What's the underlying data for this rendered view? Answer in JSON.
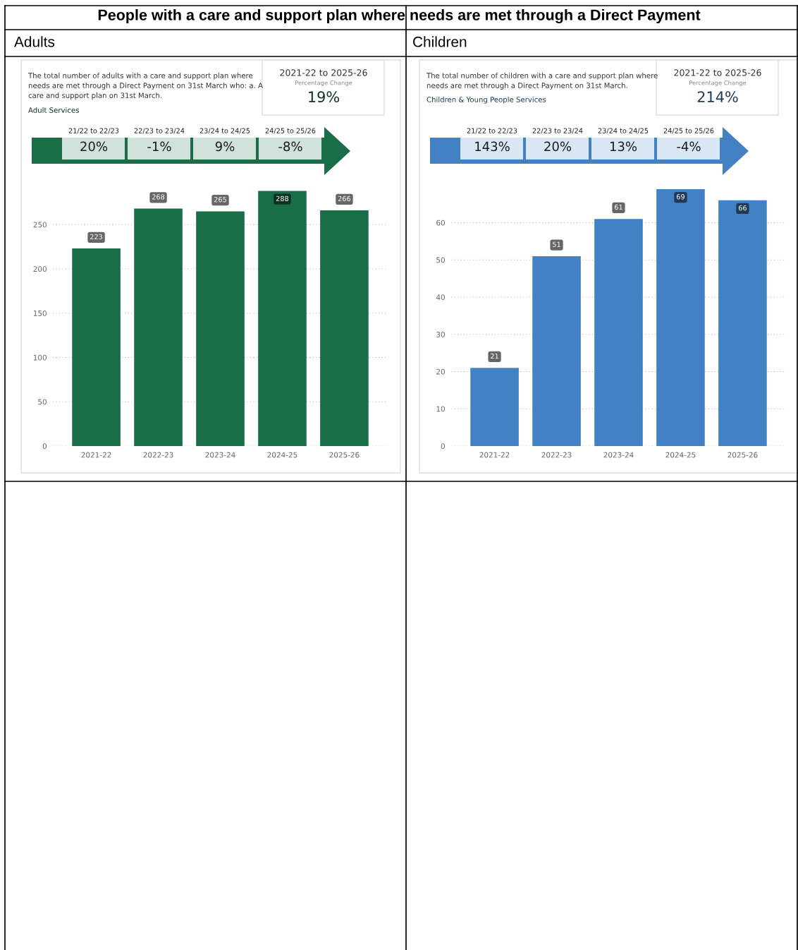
{
  "chart_data": [
    {
      "type": "bar",
      "title": "Adults",
      "subtitle": "The total number of adults with a care and support plan where needs are met through a Direct Payment on 31st March who: a. A care and support plan on 31st March.",
      "categories": [
        "2021-22",
        "2022-23",
        "2023-24",
        "2024-25",
        "2025-26"
      ],
      "values": [
        223,
        268,
        265,
        288,
        266
      ],
      "color": "#1a6e47",
      "ylim": [
        0,
        290
      ],
      "yticks": [
        0,
        50,
        100,
        150,
        200,
        250
      ],
      "grid": "y",
      "data_labels": true,
      "annotations": [
        "Adult Services",
        "2021-22 to 2025-26",
        "Percentage Change",
        "19%",
        "21/22 to 22/23",
        "20%",
        "22/23 to 23/24",
        "-1%",
        "23/24 to 24/25",
        "9%",
        "24/25 to 25/26",
        "-8%",
        "People with a care and support plan where needs are met through a Direct Payment"
      ]
    },
    {
      "type": "bar",
      "title": "Children",
      "subtitle": "The total number of children with a care and support plan where needs are met through a Direct Payment on 31st March.",
      "categories": [
        "2021-22",
        "2022-23",
        "2023-24",
        "2024-25",
        "2025-26"
      ],
      "values": [
        21,
        51,
        61,
        69,
        66
      ],
      "color": "#4281c4",
      "ylim": [
        0,
        69
      ],
      "yticks": [
        0,
        10,
        20,
        30,
        40,
        50,
        60
      ],
      "grid": "y",
      "data_labels": true,
      "annotations": [
        "Children & Young People Services",
        "2021-22 to 2025-26",
        "Percentage Change",
        "214%",
        "21/22 to 22/23",
        "143%",
        "22/23 to 23/24",
        "20%",
        "23/24 to 24/25",
        "13%",
        "24/25 to 25/26",
        "-4%"
      ]
    }
  ]
}
